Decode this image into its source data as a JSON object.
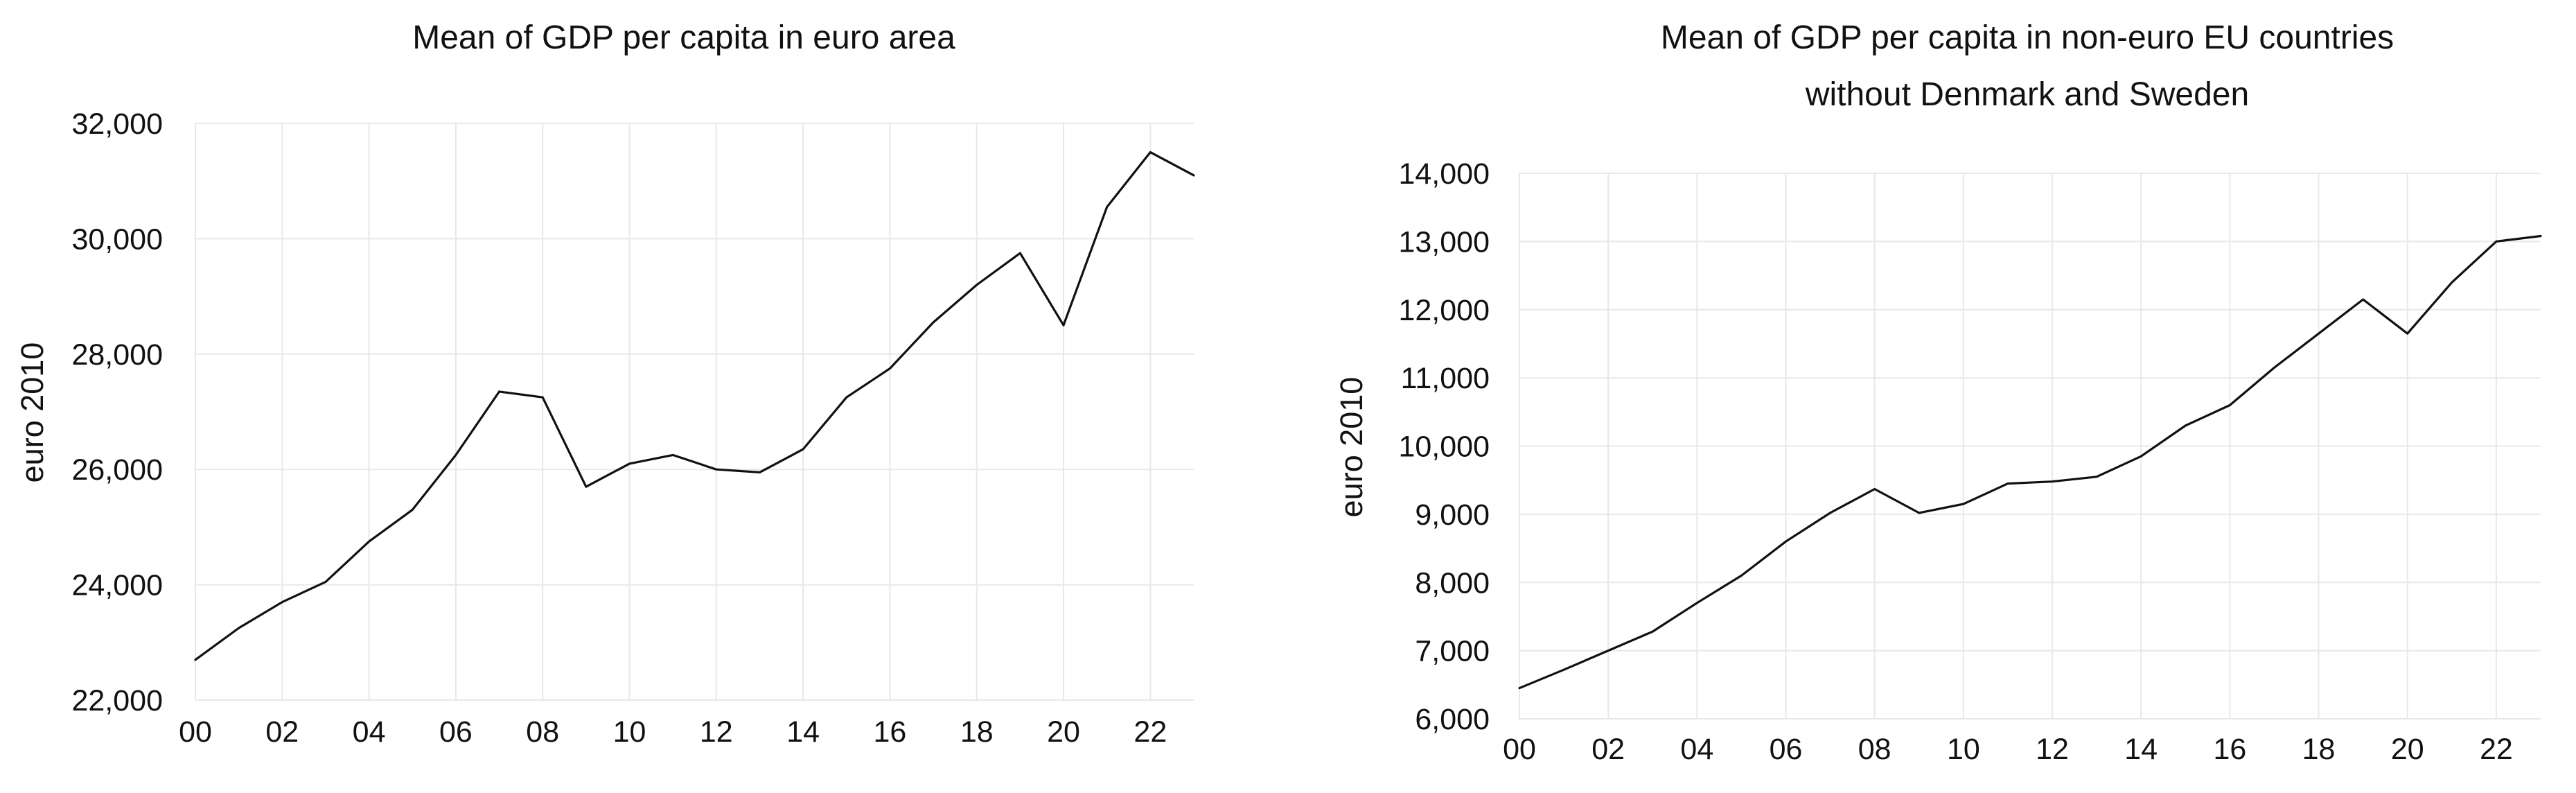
{
  "chart_data": [
    {
      "type": "line",
      "title": "Mean of GDP per capita in euro area",
      "ylabel": "euro 2010",
      "xlabel": "",
      "grid": true,
      "legend": "none",
      "x": [
        2000,
        2001,
        2002,
        2003,
        2004,
        2005,
        2006,
        2007,
        2008,
        2009,
        2010,
        2011,
        2012,
        2013,
        2014,
        2015,
        2016,
        2017,
        2018,
        2019,
        2020,
        2021,
        2022,
        2023
      ],
      "xlim": [
        2000,
        2023
      ],
      "xticks": [
        2000,
        2002,
        2004,
        2006,
        2008,
        2010,
        2012,
        2014,
        2016,
        2018,
        2020,
        2022
      ],
      "xtick_labels": [
        "00",
        "02",
        "04",
        "06",
        "08",
        "10",
        "12",
        "14",
        "16",
        "18",
        "20",
        "22"
      ],
      "ylim": [
        22000,
        32000
      ],
      "yticks": [
        22000,
        24000,
        26000,
        28000,
        30000,
        32000
      ],
      "ytick_labels": [
        "22,000",
        "24,000",
        "26,000",
        "28,000",
        "30,000",
        "32,000"
      ],
      "series": [
        {
          "values": [
            22700,
            23250,
            23700,
            24050,
            24750,
            25300,
            26250,
            27350,
            27250,
            25700,
            26100,
            26250,
            26000,
            25950,
            26350,
            27250,
            27750,
            28550,
            29200,
            29750,
            28500,
            30550,
            31500,
            31100
          ]
        }
      ]
    },
    {
      "type": "line",
      "title": "Mean of GDP per capita in non-euro EU countries without Denmark and Sweden",
      "title_lines": [
        "Mean of GDP per capita in non-euro EU countries",
        "without Denmark and Sweden"
      ],
      "ylabel": "euro 2010",
      "xlabel": "",
      "grid": true,
      "legend": "none",
      "x": [
        2000,
        2001,
        2002,
        2003,
        2004,
        2005,
        2006,
        2007,
        2008,
        2009,
        2010,
        2011,
        2012,
        2013,
        2014,
        2015,
        2016,
        2017,
        2018,
        2019,
        2020,
        2021,
        2022,
        2023
      ],
      "xlim": [
        2000,
        2023
      ],
      "xticks": [
        2000,
        2002,
        2004,
        2006,
        2008,
        2010,
        2012,
        2014,
        2016,
        2018,
        2020,
        2022
      ],
      "xtick_labels": [
        "00",
        "02",
        "04",
        "06",
        "08",
        "10",
        "12",
        "14",
        "16",
        "18",
        "20",
        "22"
      ],
      "ylim": [
        6000,
        14000
      ],
      "yticks": [
        6000,
        7000,
        8000,
        9000,
        10000,
        11000,
        12000,
        13000,
        14000
      ],
      "ytick_labels": [
        "6,000",
        "7,000",
        "8,000",
        "9,000",
        "10,000",
        "11,000",
        "12,000",
        "13,000",
        "14,000"
      ],
      "series": [
        {
          "values": [
            6450,
            6720,
            7000,
            7280,
            7700,
            8100,
            8600,
            9020,
            9370,
            9020,
            9150,
            9450,
            9480,
            9550,
            9850,
            10300,
            10600,
            11150,
            11650,
            12150,
            11650,
            12400,
            13000,
            13080
          ]
        }
      ]
    }
  ]
}
